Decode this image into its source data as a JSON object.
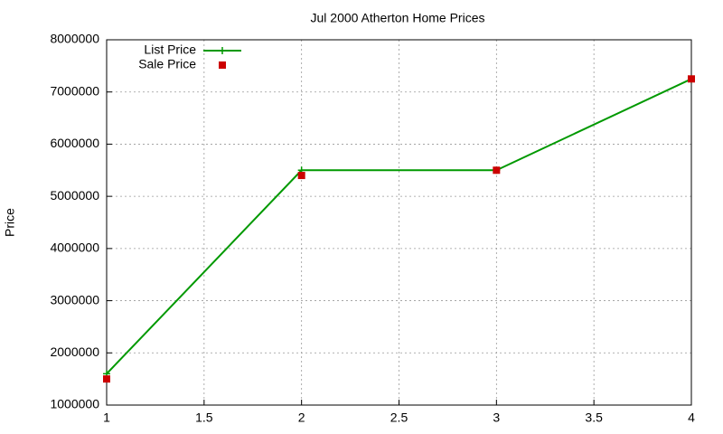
{
  "chart_data": {
    "type": "line",
    "title": "Jul 2000 Atherton Home Prices",
    "y_label": "Price",
    "x": [
      1,
      2,
      3,
      4
    ],
    "series": [
      {
        "name": "List Price",
        "color": "#009900",
        "values": [
          1600000,
          5500000,
          5500000,
          7250000
        ],
        "line": true,
        "marker": "plus"
      },
      {
        "name": "Sale Price",
        "color": "#cc0000",
        "values": [
          1500000,
          5400000,
          5500000,
          7250000
        ],
        "line": false,
        "marker": "square"
      }
    ],
    "xlim": [
      1,
      4
    ],
    "xticks": [
      1,
      1.5,
      2,
      2.5,
      3,
      3.5,
      4
    ],
    "ylim": [
      1000000,
      8000000
    ],
    "yticks": [
      1000000,
      2000000,
      3000000,
      4000000,
      5000000,
      6000000,
      7000000,
      8000000
    ],
    "grid": true,
    "legend": "top-left"
  }
}
